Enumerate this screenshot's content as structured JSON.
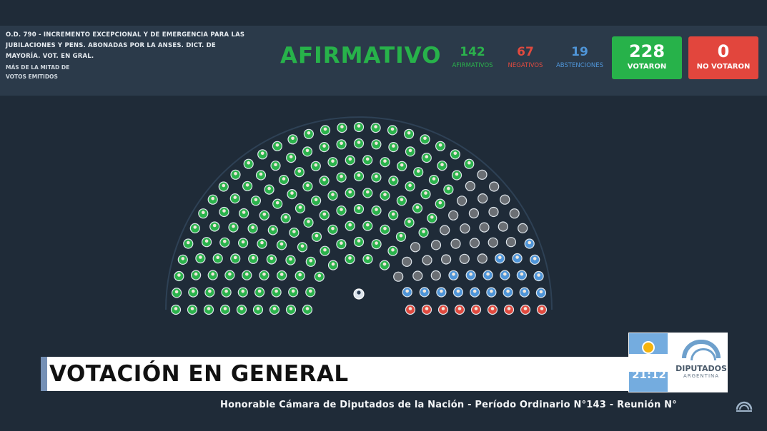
{
  "header": {
    "motion_line1": "O.D. 790 - INCREMENTO EXCEPCIONAL Y DE EMERGENCIA PARA LAS",
    "motion_line2": "JUBILACIONES Y PENS. ABONADAS POR LA ANSES. DICT. DE",
    "motion_line3": "MAYORÍA. VOT. EN GRAL.",
    "majority_line1": "MÁS DE LA MITAD DE",
    "majority_line2": "VOTOS EMITIDOS",
    "result": "AFIRMATIVO",
    "afirmativos": {
      "value": "142",
      "label": "AFIRMATIVOS"
    },
    "negativos": {
      "value": "67",
      "label": "NEGATIVOS"
    },
    "abstenciones": {
      "value": "19",
      "label": "ABSTENCIONES"
    },
    "votaron": {
      "value": "228",
      "label": "VOTARON"
    },
    "no_votaron": {
      "value": "0",
      "label": "NO VOTARON"
    }
  },
  "colors": {
    "affirmative": "#2bb24c",
    "negative": "#e04a3f",
    "abstention": "#4f95d8",
    "absent": "#6b6f74",
    "votaron_box": "#27b24a",
    "no_votaron_box": "#e2463d"
  },
  "chamber": {
    "seats_total": 257,
    "afirmativos": 142,
    "negativos": 67,
    "abstenciones": 19,
    "ausentes": 29,
    "presidente_icon": "president-seat-icon"
  },
  "lower_third": {
    "title": "VOTACIÓN EN GENERAL",
    "clock": "21:12",
    "brand": "DIPUTADOS",
    "brand_sub": "ARGENTINA",
    "ticker": "Honorable Cámara de Diputados de la Nación - Período Ordinario N°143 - Reunión N°"
  }
}
